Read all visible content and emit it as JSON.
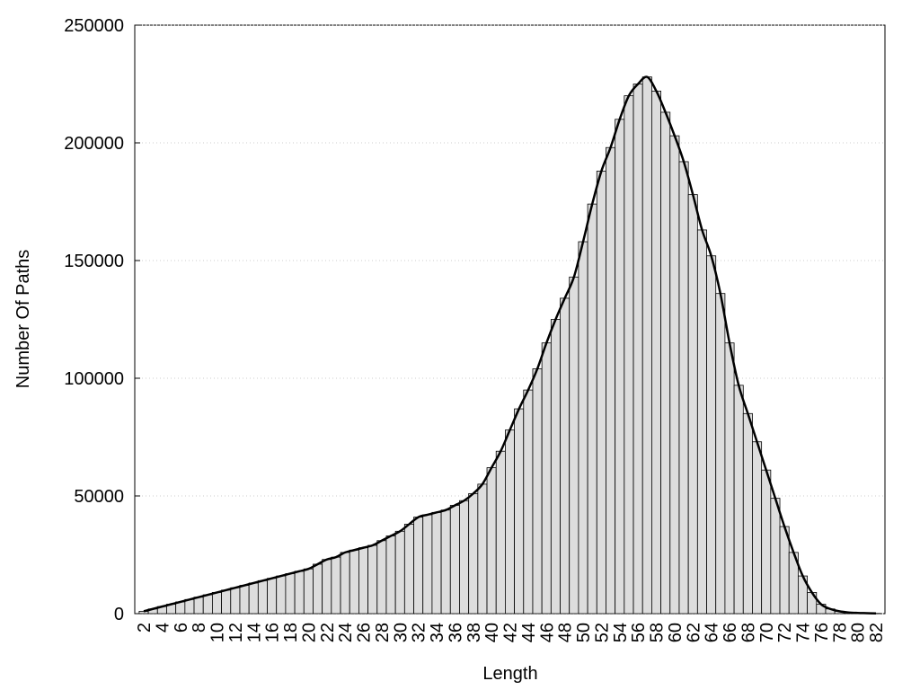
{
  "chart_data": {
    "type": "bar",
    "x_label": "Length",
    "y_label": "Number Of Paths",
    "categories": [
      2,
      null,
      4,
      null,
      6,
      null,
      8,
      null,
      10,
      null,
      12,
      null,
      14,
      null,
      16,
      null,
      18,
      null,
      20,
      null,
      22,
      null,
      24,
      null,
      26,
      null,
      28,
      null,
      30,
      null,
      32,
      null,
      34,
      null,
      36,
      null,
      38,
      null,
      40,
      null,
      42,
      null,
      44,
      null,
      46,
      null,
      48,
      null,
      50,
      null,
      52,
      null,
      54,
      null,
      56,
      null,
      58,
      null,
      60,
      null,
      62,
      null,
      64,
      null,
      66,
      null,
      68,
      null,
      70,
      null,
      72,
      null,
      74,
      null,
      76,
      null,
      78,
      null,
      80,
      null,
      82
    ],
    "values": [
      1000,
      2000,
      3000,
      4000,
      5000,
      6000,
      7000,
      8000,
      9000,
      10000,
      11000,
      12000,
      13000,
      14000,
      15000,
      16000,
      17000,
      18000,
      19000,
      21000,
      23000,
      24000,
      26000,
      27000,
      28000,
      29000,
      31000,
      33000,
      35000,
      38000,
      41000,
      42000,
      43000,
      44000,
      46000,
      48000,
      51000,
      55000,
      62000,
      69000,
      78000,
      87000,
      95000,
      104000,
      115000,
      125000,
      134000,
      143000,
      158000,
      174000,
      188000,
      198000,
      210000,
      220000,
      225000,
      228000,
      222000,
      213000,
      203000,
      192000,
      178000,
      163000,
      152000,
      136000,
      115000,
      97000,
      85000,
      73000,
      61000,
      49000,
      37000,
      26000,
      16000,
      9000,
      4000,
      2000,
      1000,
      500,
      300,
      200,
      100
    ],
    "color": "#dddddd",
    "outline_color": "#000000",
    "line": true,
    "line_color": "#000000",
    "ylim": [
      0,
      250000
    ],
    "yticks": [
      0,
      50000,
      100000,
      150000,
      200000,
      250000
    ],
    "grid": true
  }
}
